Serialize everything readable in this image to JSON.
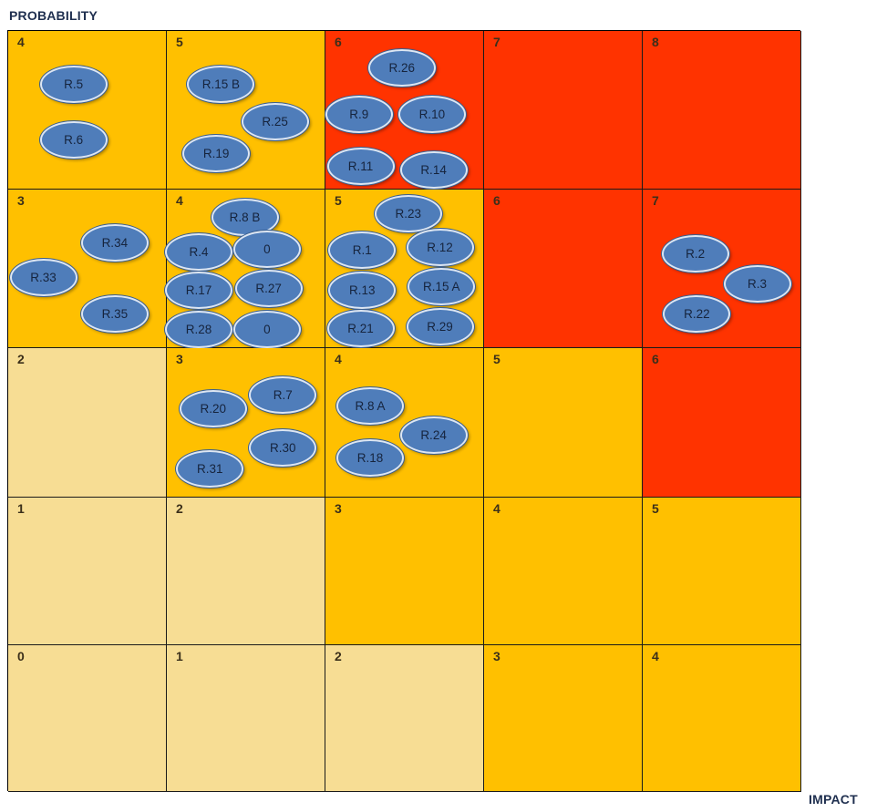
{
  "axes": {
    "y_label": "PROBABILITY",
    "x_label": "IMPACT"
  },
  "colors": {
    "low": "#f7dd94",
    "medium": "#ffc000",
    "high": "#ff3300",
    "bubble": "#4f7dba"
  },
  "rows": [
    {
      "probability": 4,
      "cells": [
        {
          "score": "4",
          "level": "medium",
          "risks": [
            {
              "label": "R.5",
              "ox": 0.4,
              "oy": 0.32
            },
            {
              "label": "R.6",
              "ox": 0.4,
              "oy": 0.67
            }
          ]
        },
        {
          "score": "5",
          "level": "medium",
          "risks": [
            {
              "label": "R.15 B",
              "ox": 0.33,
              "oy": 0.32
            },
            {
              "label": "R.25",
              "ox": 0.67,
              "oy": 0.56
            },
            {
              "label": "R.19",
              "ox": 0.3,
              "oy": 0.76
            }
          ]
        },
        {
          "score": "6",
          "level": "high",
          "risks": [
            {
              "label": "R.26",
              "ox": 0.47,
              "oy": 0.22
            },
            {
              "label": "R.9",
              "ox": 0.2,
              "oy": 0.51
            },
            {
              "label": "R.10",
              "ox": 0.66,
              "oy": 0.51
            },
            {
              "label": "R.11",
              "ox": 0.21,
              "oy": 0.84
            },
            {
              "label": "R.14",
              "ox": 0.67,
              "oy": 0.86
            }
          ]
        },
        {
          "score": "7",
          "level": "high",
          "risks": []
        },
        {
          "score": "8",
          "level": "high",
          "risks": []
        }
      ]
    },
    {
      "probability": 3,
      "cells": [
        {
          "score": "3",
          "level": "medium",
          "risks": [
            {
              "label": "R.34",
              "ox": 0.66,
              "oy": 0.32
            },
            {
              "label": "R.33",
              "ox": 0.21,
              "oy": 0.54
            },
            {
              "label": "R.35",
              "ox": 0.66,
              "oy": 0.77
            }
          ]
        },
        {
          "score": "4",
          "level": "medium",
          "risks": [
            {
              "label": "R.8 B",
              "ox": 0.48,
              "oy": 0.16
            },
            {
              "label": "R.4",
              "ox": 0.19,
              "oy": 0.38
            },
            {
              "label": "0",
              "ox": 0.62,
              "oy": 0.36
            },
            {
              "label": "R.17",
              "ox": 0.19,
              "oy": 0.62
            },
            {
              "label": "R.27",
              "ox": 0.63,
              "oy": 0.61
            },
            {
              "label": "R.28",
              "ox": 0.19,
              "oy": 0.87
            },
            {
              "label": "0",
              "ox": 0.62,
              "oy": 0.87
            }
          ]
        },
        {
          "score": "5",
          "level": "medium",
          "risks": [
            {
              "label": "R.23",
              "ox": 0.51,
              "oy": 0.14
            },
            {
              "label": "R.1",
              "ox": 0.22,
              "oy": 0.37
            },
            {
              "label": "R.12",
              "ox": 0.71,
              "oy": 0.35
            },
            {
              "label": "R.13",
              "ox": 0.22,
              "oy": 0.62
            },
            {
              "label": "R.15 A",
              "ox": 0.72,
              "oy": 0.6
            },
            {
              "label": "R.21",
              "ox": 0.21,
              "oy": 0.86
            },
            {
              "label": "R.29",
              "ox": 0.71,
              "oy": 0.85
            }
          ]
        },
        {
          "score": "6",
          "level": "high",
          "risks": []
        },
        {
          "score": "7",
          "level": "high",
          "risks": [
            {
              "label": "R.2",
              "ox": 0.32,
              "oy": 0.39
            },
            {
              "label": "R.3",
              "ox": 0.71,
              "oy": 0.58
            },
            {
              "label": "R.22",
              "ox": 0.33,
              "oy": 0.77
            }
          ]
        }
      ]
    },
    {
      "probability": 2,
      "cells": [
        {
          "score": "2",
          "level": "low",
          "risks": []
        },
        {
          "score": "3",
          "level": "medium",
          "risks": [
            {
              "label": "R.20",
              "ox": 0.28,
              "oy": 0.39
            },
            {
              "label": "R.7",
              "ox": 0.72,
              "oy": 0.3
            },
            {
              "label": "R.30",
              "ox": 0.72,
              "oy": 0.65
            },
            {
              "label": "R.31",
              "ox": 0.26,
              "oy": 0.79
            }
          ]
        },
        {
          "score": "4",
          "level": "medium",
          "risks": [
            {
              "label": "R.8 A",
              "ox": 0.27,
              "oy": 0.37
            },
            {
              "label": "R.24",
              "ox": 0.67,
              "oy": 0.57
            },
            {
              "label": "R.18",
              "ox": 0.27,
              "oy": 0.72
            }
          ]
        },
        {
          "score": "5",
          "level": "medium",
          "risks": []
        },
        {
          "score": "6",
          "level": "high",
          "risks": []
        }
      ]
    },
    {
      "probability": 1,
      "cells": [
        {
          "score": "1",
          "level": "low",
          "risks": []
        },
        {
          "score": "2",
          "level": "low",
          "risks": []
        },
        {
          "score": "3",
          "level": "medium",
          "risks": []
        },
        {
          "score": "4",
          "level": "medium",
          "risks": []
        },
        {
          "score": "5",
          "level": "medium",
          "risks": []
        }
      ]
    },
    {
      "probability": 0,
      "cells": [
        {
          "score": "0",
          "level": "low",
          "risks": []
        },
        {
          "score": "1",
          "level": "low",
          "risks": []
        },
        {
          "score": "2",
          "level": "low",
          "risks": []
        },
        {
          "score": "3",
          "level": "medium",
          "risks": []
        },
        {
          "score": "4",
          "level": "medium",
          "risks": []
        }
      ]
    }
  ]
}
